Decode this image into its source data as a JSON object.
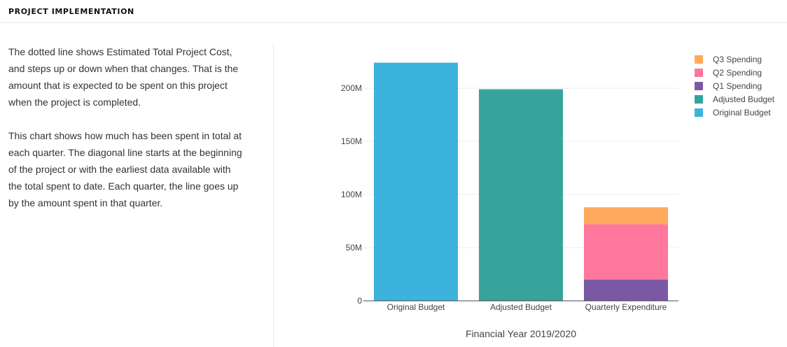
{
  "header": {
    "title": "PROJECT IMPLEMENTATION"
  },
  "description": {
    "paragraph1": "The dotted line shows Estimated Total Project Cost, and steps up or down when that changes. That is the amount that is expected to be spent on this project when the project is completed.",
    "paragraph2": "This chart shows how much has been spent in total at each quarter. The diagonal line starts at the beginning of the project or with the earliest data available with the total spent to date. Each quarter, the line goes up by the amount spent in that quarter."
  },
  "chart_data": {
    "type": "bar",
    "stacked": true,
    "categories": [
      "Original Budget",
      "Adjusted Budget",
      "Quarterly Expenditure"
    ],
    "series": [
      {
        "name": "Original Budget",
        "color": "#3bb3dc",
        "values": [
          224,
          0,
          0
        ]
      },
      {
        "name": "Adjusted Budget",
        "color": "#36a39d",
        "values": [
          0,
          199,
          0
        ]
      },
      {
        "name": "Q1 Spending",
        "color": "#7a58a6",
        "values": [
          0,
          0,
          20
        ]
      },
      {
        "name": "Q2 Spending",
        "color": "#ff779c",
        "values": [
          0,
          0,
          52
        ]
      },
      {
        "name": "Q3 Spending",
        "color": "#ffa95c",
        "values": [
          0,
          0,
          16
        ]
      }
    ],
    "legend_order": [
      "Q3 Spending",
      "Q2 Spending",
      "Q1 Spending",
      "Adjusted Budget",
      "Original Budget"
    ],
    "y_ticks": [
      0,
      50,
      100,
      150,
      200
    ],
    "y_tick_labels": [
      "0",
      "50M",
      "100M",
      "150M",
      "200M"
    ],
    "ylim": [
      0,
      229
    ],
    "xlabel": "Financial Year 2019/2020",
    "ylabel": "",
    "grid": true,
    "legend_position": "top-right"
  }
}
